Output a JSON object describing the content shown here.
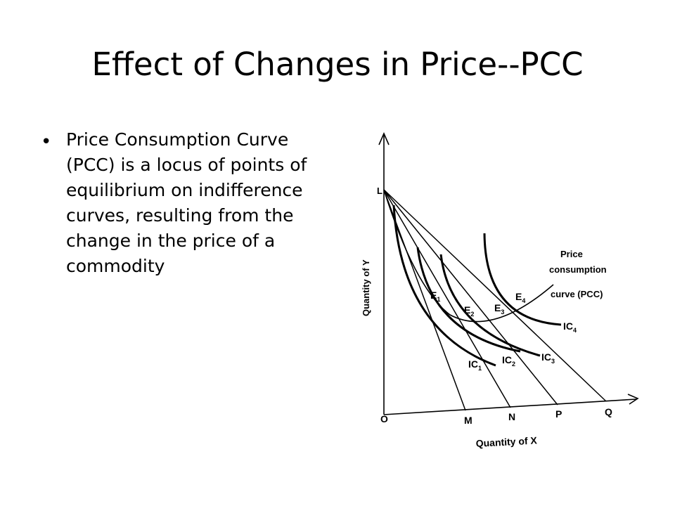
{
  "slide": {
    "title": "Effect of Changes in Price--PCC",
    "bullet": "Price Consumption Curve (PCC) is a locus of points of equilibrium on indifference curves, resulting from the change in the price of a commodity"
  },
  "diagram": {
    "axes": {
      "y_label": "Quantity of Y",
      "x_label": "Quantity of X",
      "origin": "O"
    },
    "y_intercept_label": "L",
    "budget_line_x_ends": [
      "M",
      "N",
      "P",
      "Q"
    ],
    "equilibria": [
      {
        "name": "E",
        "sub": "1"
      },
      {
        "name": "E",
        "sub": "2"
      },
      {
        "name": "E",
        "sub": "3"
      },
      {
        "name": "E",
        "sub": "4"
      }
    ],
    "indifference_curves": [
      {
        "name": "IC",
        "sub": "1"
      },
      {
        "name": "IC",
        "sub": "2"
      },
      {
        "name": "IC",
        "sub": "3"
      },
      {
        "name": "IC",
        "sub": "4"
      }
    ],
    "pcc_label": [
      "Price",
      "consumption",
      "curve (PCC)"
    ]
  }
}
